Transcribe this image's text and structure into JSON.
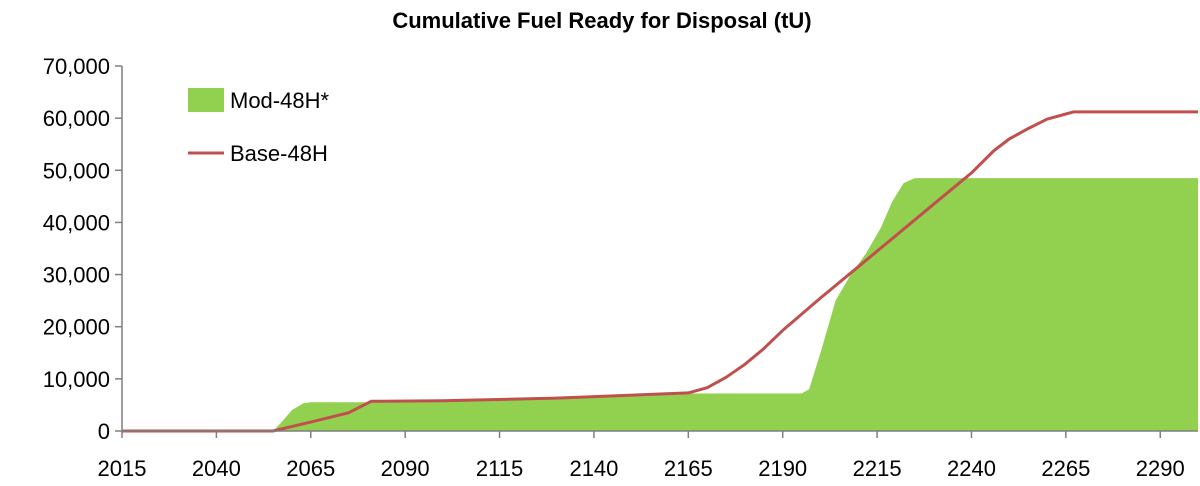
{
  "chart_data": {
    "type": "area",
    "title": "Cumulative Fuel Ready for Disposal (tU)",
    "xlabel": "",
    "ylabel": "",
    "xlim": [
      2015,
      2300
    ],
    "ylim": [
      0,
      70000
    ],
    "x_ticks": [
      "2015",
      "2040",
      "2065",
      "2090",
      "2115",
      "2140",
      "2165",
      "2190",
      "2215",
      "2240",
      "2265",
      "2290"
    ],
    "y_ticks": [
      "0",
      "10,000",
      "20,000",
      "30,000",
      "40,000",
      "50,000",
      "60,000",
      "70,000"
    ],
    "grid": false,
    "legend_position": "top-left",
    "colors": {
      "Mod-48H*": "#92d050",
      "Base-48H": "#c0504d"
    },
    "series": [
      {
        "name": "Mod-48H*",
        "type": "area",
        "x": [
          2015,
          2055,
          2057,
          2060,
          2063,
          2065,
          2090,
          2165,
          2175,
          2195,
          2197,
          2200,
          2204,
          2208,
          2212,
          2216,
          2219,
          2222,
          2225,
          2240,
          2270,
          2300
        ],
        "y": [
          0,
          0,
          1500,
          4000,
          5300,
          5500,
          5500,
          7200,
          7200,
          7200,
          8000,
          15000,
          25000,
          30000,
          34000,
          39000,
          44000,
          47500,
          48500,
          48500,
          48500,
          48500
        ]
      },
      {
        "name": "Base-48H",
        "type": "line",
        "x": [
          2015,
          2055,
          2065,
          2075,
          2081,
          2100,
          2130,
          2165,
          2170,
          2175,
          2180,
          2185,
          2190,
          2200,
          2210,
          2220,
          2230,
          2240,
          2246,
          2250,
          2255,
          2260,
          2265,
          2267,
          2300
        ],
        "y": [
          0,
          0,
          1700,
          3500,
          5700,
          5800,
          6300,
          7300,
          8300,
          10300,
          12800,
          15800,
          19300,
          25500,
          31500,
          37500,
          43500,
          49500,
          53800,
          56000,
          58000,
          59800,
          60800,
          61200,
          61200
        ]
      }
    ]
  }
}
